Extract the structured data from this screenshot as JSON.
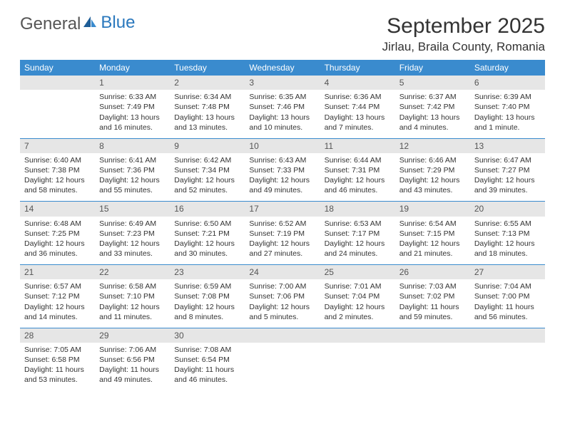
{
  "brand": {
    "part1": "General",
    "part2": "Blue"
  },
  "title": "September 2025",
  "location": "Jirlau, Braila County, Romania",
  "colors": {
    "header_bg": "#3a8bce",
    "header_text": "#ffffff",
    "daynum_bg": "#e6e6e6",
    "border": "#3a8bce",
    "text": "#333333",
    "logo_gray": "#555555",
    "logo_blue": "#2a78bd",
    "page_bg": "#ffffff"
  },
  "typography": {
    "title_fontsize": 30,
    "location_fontsize": 17,
    "th_fontsize": 12,
    "cell_fontsize": 10.5
  },
  "weekdays": [
    "Sunday",
    "Monday",
    "Tuesday",
    "Wednesday",
    "Thursday",
    "Friday",
    "Saturday"
  ],
  "weeks": [
    {
      "nums": [
        "",
        "1",
        "2",
        "3",
        "4",
        "5",
        "6"
      ],
      "cells": [
        {
          "sr": "",
          "ss": "",
          "dl": ""
        },
        {
          "sr": "Sunrise: 6:33 AM",
          "ss": "Sunset: 7:49 PM",
          "dl": "Daylight: 13 hours and 16 minutes."
        },
        {
          "sr": "Sunrise: 6:34 AM",
          "ss": "Sunset: 7:48 PM",
          "dl": "Daylight: 13 hours and 13 minutes."
        },
        {
          "sr": "Sunrise: 6:35 AM",
          "ss": "Sunset: 7:46 PM",
          "dl": "Daylight: 13 hours and 10 minutes."
        },
        {
          "sr": "Sunrise: 6:36 AM",
          "ss": "Sunset: 7:44 PM",
          "dl": "Daylight: 13 hours and 7 minutes."
        },
        {
          "sr": "Sunrise: 6:37 AM",
          "ss": "Sunset: 7:42 PM",
          "dl": "Daylight: 13 hours and 4 minutes."
        },
        {
          "sr": "Sunrise: 6:39 AM",
          "ss": "Sunset: 7:40 PM",
          "dl": "Daylight: 13 hours and 1 minute."
        }
      ]
    },
    {
      "nums": [
        "7",
        "8",
        "9",
        "10",
        "11",
        "12",
        "13"
      ],
      "cells": [
        {
          "sr": "Sunrise: 6:40 AM",
          "ss": "Sunset: 7:38 PM",
          "dl": "Daylight: 12 hours and 58 minutes."
        },
        {
          "sr": "Sunrise: 6:41 AM",
          "ss": "Sunset: 7:36 PM",
          "dl": "Daylight: 12 hours and 55 minutes."
        },
        {
          "sr": "Sunrise: 6:42 AM",
          "ss": "Sunset: 7:34 PM",
          "dl": "Daylight: 12 hours and 52 minutes."
        },
        {
          "sr": "Sunrise: 6:43 AM",
          "ss": "Sunset: 7:33 PM",
          "dl": "Daylight: 12 hours and 49 minutes."
        },
        {
          "sr": "Sunrise: 6:44 AM",
          "ss": "Sunset: 7:31 PM",
          "dl": "Daylight: 12 hours and 46 minutes."
        },
        {
          "sr": "Sunrise: 6:46 AM",
          "ss": "Sunset: 7:29 PM",
          "dl": "Daylight: 12 hours and 43 minutes."
        },
        {
          "sr": "Sunrise: 6:47 AM",
          "ss": "Sunset: 7:27 PM",
          "dl": "Daylight: 12 hours and 39 minutes."
        }
      ]
    },
    {
      "nums": [
        "14",
        "15",
        "16",
        "17",
        "18",
        "19",
        "20"
      ],
      "cells": [
        {
          "sr": "Sunrise: 6:48 AM",
          "ss": "Sunset: 7:25 PM",
          "dl": "Daylight: 12 hours and 36 minutes."
        },
        {
          "sr": "Sunrise: 6:49 AM",
          "ss": "Sunset: 7:23 PM",
          "dl": "Daylight: 12 hours and 33 minutes."
        },
        {
          "sr": "Sunrise: 6:50 AM",
          "ss": "Sunset: 7:21 PM",
          "dl": "Daylight: 12 hours and 30 minutes."
        },
        {
          "sr": "Sunrise: 6:52 AM",
          "ss": "Sunset: 7:19 PM",
          "dl": "Daylight: 12 hours and 27 minutes."
        },
        {
          "sr": "Sunrise: 6:53 AM",
          "ss": "Sunset: 7:17 PM",
          "dl": "Daylight: 12 hours and 24 minutes."
        },
        {
          "sr": "Sunrise: 6:54 AM",
          "ss": "Sunset: 7:15 PM",
          "dl": "Daylight: 12 hours and 21 minutes."
        },
        {
          "sr": "Sunrise: 6:55 AM",
          "ss": "Sunset: 7:13 PM",
          "dl": "Daylight: 12 hours and 18 minutes."
        }
      ]
    },
    {
      "nums": [
        "21",
        "22",
        "23",
        "24",
        "25",
        "26",
        "27"
      ],
      "cells": [
        {
          "sr": "Sunrise: 6:57 AM",
          "ss": "Sunset: 7:12 PM",
          "dl": "Daylight: 12 hours and 14 minutes."
        },
        {
          "sr": "Sunrise: 6:58 AM",
          "ss": "Sunset: 7:10 PM",
          "dl": "Daylight: 12 hours and 11 minutes."
        },
        {
          "sr": "Sunrise: 6:59 AM",
          "ss": "Sunset: 7:08 PM",
          "dl": "Daylight: 12 hours and 8 minutes."
        },
        {
          "sr": "Sunrise: 7:00 AM",
          "ss": "Sunset: 7:06 PM",
          "dl": "Daylight: 12 hours and 5 minutes."
        },
        {
          "sr": "Sunrise: 7:01 AM",
          "ss": "Sunset: 7:04 PM",
          "dl": "Daylight: 12 hours and 2 minutes."
        },
        {
          "sr": "Sunrise: 7:03 AM",
          "ss": "Sunset: 7:02 PM",
          "dl": "Daylight: 11 hours and 59 minutes."
        },
        {
          "sr": "Sunrise: 7:04 AM",
          "ss": "Sunset: 7:00 PM",
          "dl": "Daylight: 11 hours and 56 minutes."
        }
      ]
    },
    {
      "nums": [
        "28",
        "29",
        "30",
        "",
        "",
        "",
        ""
      ],
      "cells": [
        {
          "sr": "Sunrise: 7:05 AM",
          "ss": "Sunset: 6:58 PM",
          "dl": "Daylight: 11 hours and 53 minutes."
        },
        {
          "sr": "Sunrise: 7:06 AM",
          "ss": "Sunset: 6:56 PM",
          "dl": "Daylight: 11 hours and 49 minutes."
        },
        {
          "sr": "Sunrise: 7:08 AM",
          "ss": "Sunset: 6:54 PM",
          "dl": "Daylight: 11 hours and 46 minutes."
        },
        {
          "sr": "",
          "ss": "",
          "dl": ""
        },
        {
          "sr": "",
          "ss": "",
          "dl": ""
        },
        {
          "sr": "",
          "ss": "",
          "dl": ""
        },
        {
          "sr": "",
          "ss": "",
          "dl": ""
        }
      ]
    }
  ]
}
